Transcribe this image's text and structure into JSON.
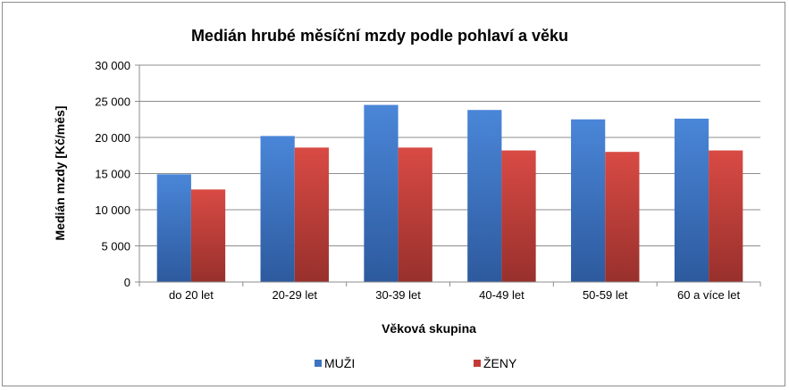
{
  "chart_data": {
    "type": "bar",
    "title": "Medián hrubé měsíční mzdy podle pohlaví a věku",
    "xlabel": "Věková skupina",
    "ylabel": "Medián  mzdy  [Kč/měs]",
    "categories": [
      "do 20 let",
      "20-29 let",
      "30-39 let",
      "40-49 let",
      "50-59 let",
      "60 a více let"
    ],
    "series": [
      {
        "name": "MUŽI",
        "values": [
          14900,
          20200,
          24500,
          23800,
          22500,
          22600
        ]
      },
      {
        "name": "ŽENY",
        "values": [
          12800,
          18600,
          18600,
          18200,
          18000,
          18200
        ]
      }
    ],
    "ylim": [
      0,
      30000
    ],
    "yticks": [
      0,
      5000,
      10000,
      15000,
      20000,
      25000,
      30000
    ],
    "ytick_labels": [
      "0",
      "5 000",
      "10 000",
      "15 000",
      "20 000",
      "25 000",
      "30 000"
    ],
    "grid": true,
    "legend": "bottom",
    "colors": {
      "MUŽI": "#3f73c2",
      "ŽENY": "#c43a36"
    }
  }
}
